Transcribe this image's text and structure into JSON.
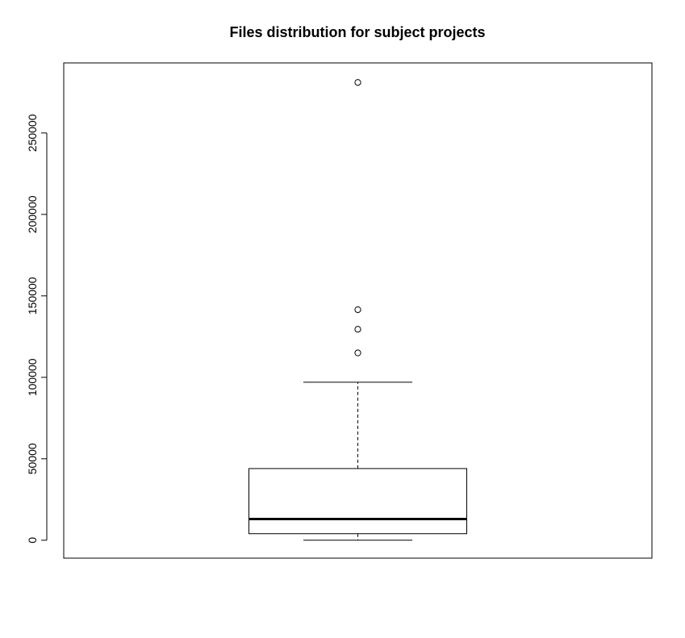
{
  "chart_data": {
    "type": "boxplot",
    "title": "Files distribution for subject projects",
    "xlabel": "",
    "ylabel": "",
    "ylim": [
      -11000,
      293000
    ],
    "yticks": [
      0,
      50000,
      100000,
      150000,
      200000,
      250000
    ],
    "ytick_labels": [
      "0",
      "50000",
      "100000",
      "150000",
      "200000",
      "250000"
    ],
    "grid": false,
    "box": {
      "whisker_low": 0,
      "q1": 4000,
      "median": 13000,
      "q3": 44000,
      "whisker_high": 97000
    },
    "outliers": [
      115000,
      129500,
      141500,
      281000
    ]
  }
}
